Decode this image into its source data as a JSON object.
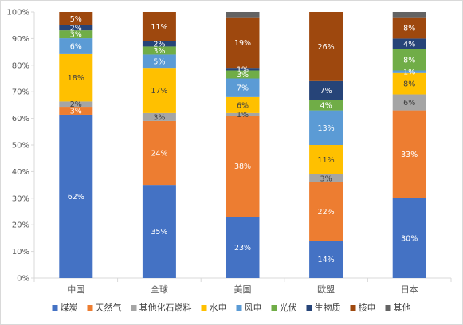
{
  "chart_data": {
    "type": "bar",
    "stacked": true,
    "percent": true,
    "categories": [
      "中国",
      "全球",
      "美国",
      "欧盟",
      "日本"
    ],
    "series": [
      {
        "name": "煤炭",
        "color": "#4472C4",
        "values": [
          62,
          35,
          23,
          14,
          30
        ],
        "labels": [
          "62%",
          "35%",
          "23%",
          "14%",
          "30%"
        ]
      },
      {
        "name": "天然气",
        "color": "#ED7D31",
        "values": [
          3,
          24,
          38,
          22,
          33
        ],
        "labels": [
          "3%",
          "24%",
          "38%",
          "22%",
          "33%"
        ]
      },
      {
        "name": "其他化石燃料",
        "color": "#A5A5A5",
        "values": [
          2,
          3,
          1,
          3,
          6
        ],
        "labels": [
          "2%",
          "3%",
          "1%",
          "3%",
          "6%"
        ]
      },
      {
        "name": "水电",
        "color": "#FFC000",
        "values": [
          18,
          17,
          6,
          11,
          8
        ],
        "labels": [
          "18%",
          "17%",
          "6%",
          "11%",
          "8%"
        ]
      },
      {
        "name": "风电",
        "color": "#5B9BD5",
        "values": [
          6,
          5,
          7,
          13,
          1
        ],
        "labels": [
          "6%",
          "5%",
          "7%",
          "13%",
          "1%"
        ]
      },
      {
        "name": "光伏",
        "color": "#70AD47",
        "values": [
          3,
          3,
          3,
          4,
          8
        ],
        "labels": [
          "3%",
          "3%",
          "3%",
          "4%",
          "8%"
        ]
      },
      {
        "name": "生物质",
        "color": "#264478",
        "values": [
          2,
          2,
          1,
          7,
          4
        ],
        "labels": [
          "2%",
          "2%",
          "1%",
          "7%",
          "4%"
        ]
      },
      {
        "name": "核电",
        "color": "#9E480E",
        "values": [
          5,
          11,
          19,
          26,
          8
        ],
        "labels": [
          "5%",
          "11%",
          "19%",
          "26%",
          "8%"
        ]
      },
      {
        "name": "其他",
        "color": "#636363",
        "values": [
          0,
          0,
          2,
          0,
          2
        ],
        "labels": [
          "",
          "",
          "",
          "",
          ""
        ]
      }
    ],
    "yticks": [
      "0%",
      "10%",
      "20%",
      "30%",
      "40%",
      "50%",
      "60%",
      "70%",
      "80%",
      "90%",
      "100%"
    ],
    "ylim": [
      0,
      100
    ],
    "grid": false,
    "legend": "bottom",
    "title": "",
    "xlabel": "",
    "ylabel": ""
  }
}
